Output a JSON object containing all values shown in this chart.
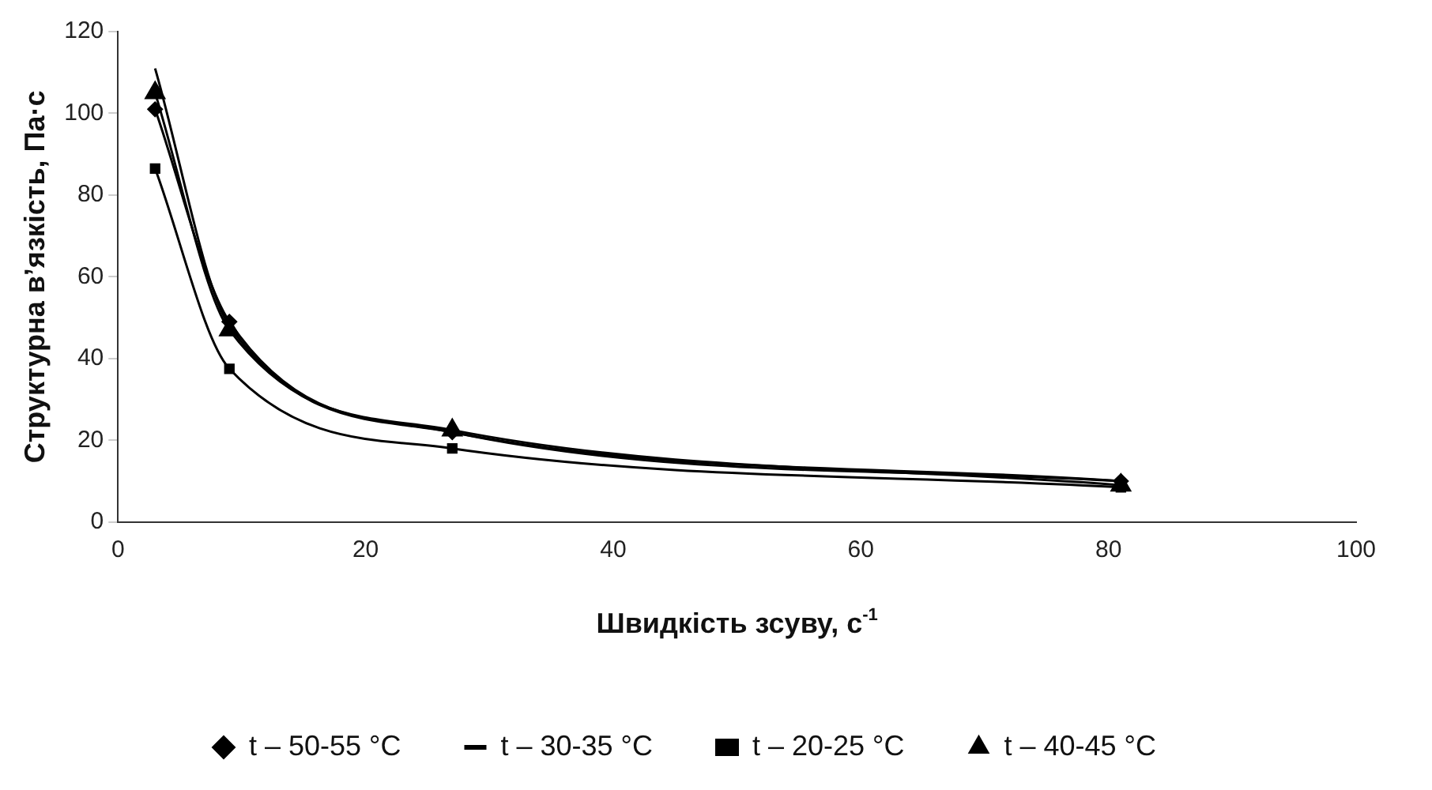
{
  "chart_data": {
    "type": "line",
    "xlabel": "Швидкість зсуву, с$^{-1}$",
    "ylabel": "Структурна в’язкість, Па·с",
    "x": [
      3,
      9,
      27,
      81
    ],
    "series": [
      {
        "name": "t – 50-55 °C",
        "color": "#000000",
        "marker": "diamond",
        "values": [
          101,
          49,
          22,
          10
        ]
      },
      {
        "name": "t – 30-35 °C",
        "color": "#000000",
        "marker": "none",
        "values": [
          111,
          48,
          22,
          10
        ]
      },
      {
        "name": "t – 20-25 °C",
        "color": "#000000",
        "marker": "square",
        "values": [
          86.5,
          37.5,
          18,
          8.5
        ]
      },
      {
        "name": "t – 40-45 °C",
        "color": "#000000",
        "marker": "triangle",
        "values": [
          105,
          47,
          22.5,
          9
        ]
      }
    ],
    "xlim": [
      0,
      100
    ],
    "xticks": [
      0,
      20,
      40,
      60,
      80,
      100
    ],
    "ylim": [
      0,
      120
    ],
    "yticks": [
      0,
      20,
      40,
      60,
      80,
      100,
      120
    ],
    "grid": false,
    "legend": "bottom"
  }
}
